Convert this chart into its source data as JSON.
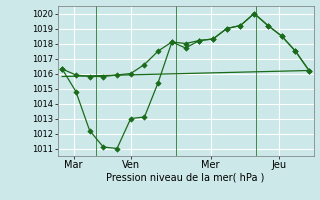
{
  "background_color": "#cce8e8",
  "grid_color": "#ffffff",
  "line_color": "#1a6b1a",
  "marker_color": "#1a6b1a",
  "xlabel": "Pression niveau de la mer( hPa )",
  "ylim": [
    1010.5,
    1020.5
  ],
  "yticks": [
    1011,
    1012,
    1013,
    1014,
    1015,
    1016,
    1017,
    1018,
    1019,
    1020
  ],
  "day_labels": [
    "Mar",
    "Ven",
    "Mer",
    "Jeu"
  ],
  "day_positions": [
    0.5,
    3.0,
    6.5,
    9.5
  ],
  "vline_positions": [
    1.5,
    5.0,
    8.5
  ],
  "xlim": [
    -0.2,
    11.0
  ],
  "series": [
    {
      "x": [
        0.0,
        0.6,
        1.2,
        1.8,
        2.4,
        3.0,
        3.6,
        4.2,
        4.8,
        5.4,
        6.0,
        6.6,
        7.2,
        7.8,
        8.4,
        9.0,
        9.6,
        10.2,
        10.8
      ],
      "y": [
        1016.3,
        1015.9,
        1015.8,
        1015.8,
        1015.9,
        1016.0,
        1016.6,
        1017.5,
        1018.1,
        1018.0,
        1018.2,
        1018.3,
        1019.0,
        1019.2,
        1020.0,
        1019.2,
        1018.5,
        1017.5,
        1016.2
      ],
      "has_markers": true
    },
    {
      "x": [
        0.0,
        0.6,
        1.2,
        1.8,
        2.4,
        3.0,
        3.6,
        4.2,
        4.8,
        5.4,
        6.0,
        6.6,
        7.2,
        7.8,
        8.4,
        9.0,
        9.6,
        10.2,
        10.8
      ],
      "y": [
        1016.3,
        1014.8,
        1012.2,
        1011.1,
        1011.0,
        1013.0,
        1013.1,
        1015.4,
        1018.1,
        1017.7,
        1018.2,
        1018.3,
        1019.0,
        1019.2,
        1020.0,
        1019.2,
        1018.5,
        1017.5,
        1016.2
      ],
      "has_markers": true
    },
    {
      "x": [
        0.0,
        10.8
      ],
      "y": [
        1015.8,
        1016.2
      ],
      "has_markers": false
    }
  ],
  "figsize": [
    3.2,
    2.0
  ],
  "dpi": 100,
  "xlabel_fontsize": 7,
  "tick_fontsize": 6,
  "linewidth": 0.9,
  "markersize": 2.8
}
